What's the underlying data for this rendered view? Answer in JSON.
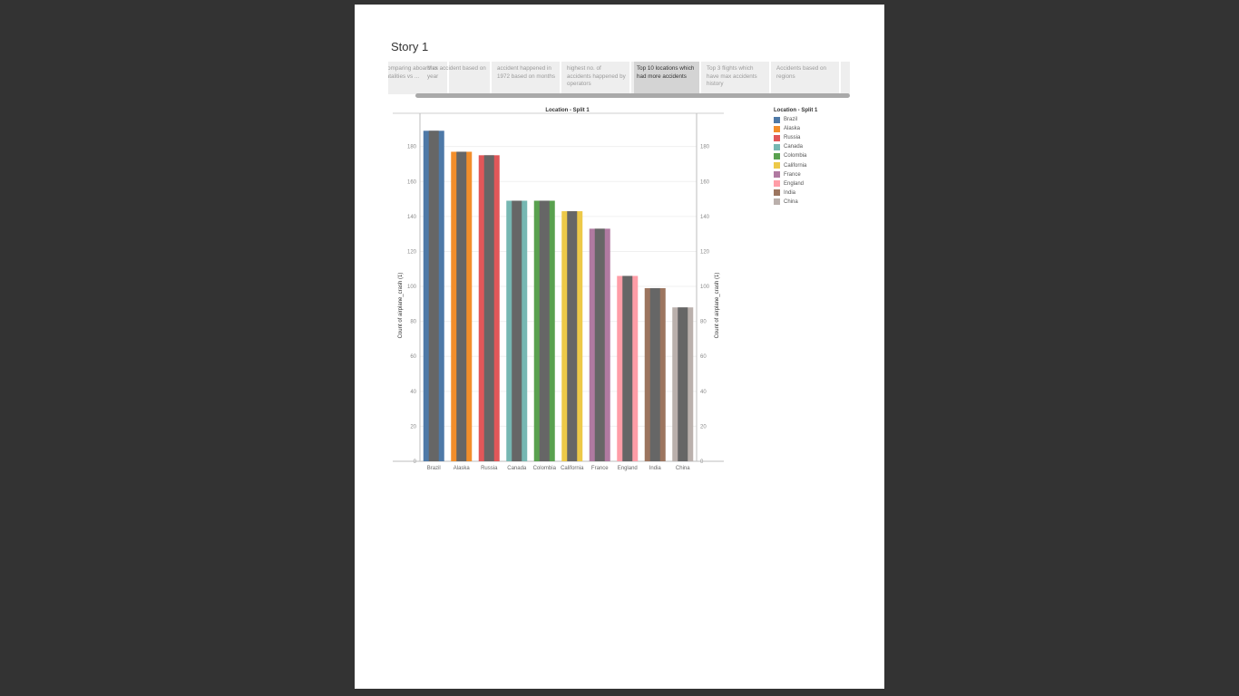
{
  "story": {
    "title": "Story 1"
  },
  "tabs": [
    {
      "label": "comparing aboard vs fatalities vs ...",
      "active": false
    },
    {
      "label": "Max accident based on year",
      "active": false
    },
    {
      "label": "accident happened in 1972 based on months",
      "active": false
    },
    {
      "label": "highest no. of accidents happened by operators",
      "active": false
    },
    {
      "label": "Top 10 locations which had more accidents",
      "active": true
    },
    {
      "label": "Top 3 flights which have max accidents history",
      "active": false
    },
    {
      "label": "Accidents based on regions",
      "active": false
    }
  ],
  "legend": {
    "title": "Location - Split 1",
    "items": [
      {
        "label": "Brazil",
        "color": "#4e79a7"
      },
      {
        "label": "Alaska",
        "color": "#f28e2b"
      },
      {
        "label": "Russia",
        "color": "#e15759"
      },
      {
        "label": "Canada",
        "color": "#76b7b2"
      },
      {
        "label": "Colombia",
        "color": "#59a14f"
      },
      {
        "label": "California",
        "color": "#edc948"
      },
      {
        "label": "France",
        "color": "#b07aa1"
      },
      {
        "label": "England",
        "color": "#ff9da7"
      },
      {
        "label": "India",
        "color": "#9c755f"
      },
      {
        "label": "China",
        "color": "#bab0ac"
      }
    ]
  },
  "chart_data": {
    "type": "bar",
    "title": "Location - Split 1",
    "categories": [
      "Brazil",
      "Alaska",
      "Russia",
      "Canada",
      "Colombia",
      "California",
      "France",
      "England",
      "India",
      "China"
    ],
    "series": [
      {
        "name": "Count of airplane_crash (1)",
        "values": [
          189,
          177,
          175,
          149,
          149,
          143,
          133,
          106,
          99,
          88
        ]
      }
    ],
    "overlay_color": "#666666",
    "colors": [
      "#4e79a7",
      "#f28e2b",
      "#e15759",
      "#76b7b2",
      "#59a14f",
      "#edc948",
      "#b07aa1",
      "#ff9da7",
      "#9c755f",
      "#bab0ac"
    ],
    "ylabel": "Count of airplane_crash (1)",
    "ylabel_right": "Count of airplane_crash (1)",
    "yticks": [
      0,
      20,
      40,
      60,
      80,
      100,
      120,
      140,
      160,
      180
    ],
    "ylim": [
      0,
      199
    ],
    "grid": true,
    "legend_position": "right"
  }
}
